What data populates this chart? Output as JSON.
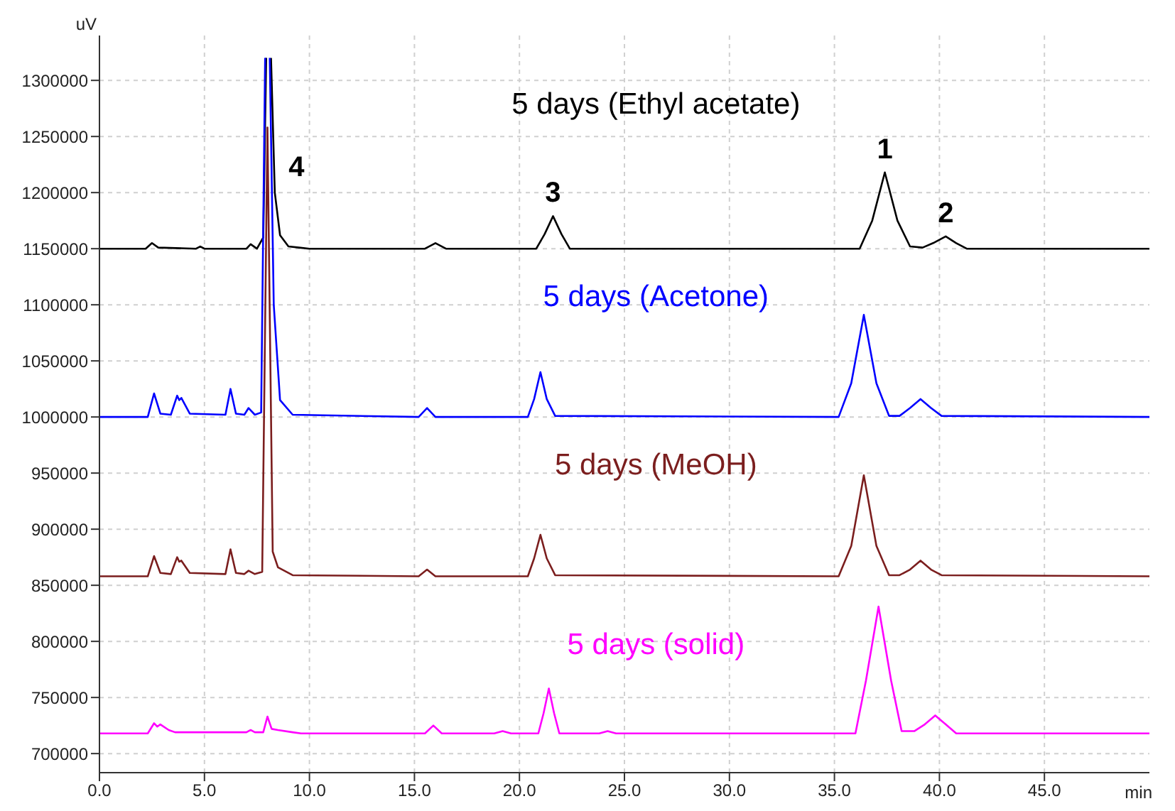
{
  "chart_data": {
    "type": "line",
    "xlabel": "min",
    "ylabel": "uV",
    "xlim": [
      0,
      50
    ],
    "ylim": [
      683000,
      1340000
    ],
    "xticks": [
      {
        "value": 0,
        "label": "0.0"
      },
      {
        "value": 5,
        "label": "5.0"
      },
      {
        "value": 10,
        "label": "10.0"
      },
      {
        "value": 15,
        "label": "15.0"
      },
      {
        "value": 20,
        "label": "20.0"
      },
      {
        "value": 25,
        "label": "25.0"
      },
      {
        "value": 30,
        "label": "30.0"
      },
      {
        "value": 35,
        "label": "35.0"
      },
      {
        "value": 40,
        "label": "40.0"
      },
      {
        "value": 45,
        "label": "45.0"
      }
    ],
    "yticks": [
      700000,
      750000,
      800000,
      850000,
      900000,
      950000,
      1000000,
      1050000,
      1100000,
      1150000,
      1200000,
      1250000,
      1300000
    ],
    "grid": true,
    "legend": false,
    "marker": "none",
    "line_style": "solid",
    "series": [
      {
        "name": "5 days (Ethyl acetate)",
        "color": "#000000",
        "x": [
          0,
          2.2,
          2.5,
          2.8,
          4.6,
          4.8,
          5.0,
          7.0,
          7.2,
          7.5,
          7.8,
          7.94,
          8.05,
          8.17,
          8.35,
          8.6,
          9.0,
          9.5,
          10,
          15.5,
          16.0,
          16.5,
          20.8,
          21.2,
          21.6,
          22.0,
          22.4,
          36.2,
          36.8,
          37.4,
          38.0,
          38.6,
          39.2,
          39.7,
          40.3,
          40.8,
          41.3,
          50
        ],
        "values": [
          1150000,
          1150000,
          1155000,
          1151000,
          1150000,
          1152000,
          1150000,
          1150000,
          1154000,
          1150000,
          1160000,
          1320000,
          null,
          1320000,
          1200000,
          1162000,
          1152000,
          1151000,
          1150000,
          1150000,
          1155000,
          1150000,
          1150000,
          1163000,
          1179000,
          1163000,
          1150000,
          1150000,
          1175000,
          1218000,
          1175000,
          1152000,
          1151000,
          1155000,
          1161000,
          1155000,
          1150000,
          1150000
        ]
      },
      {
        "name": "5 days (Acetone)",
        "color": "#0000ff",
        "x": [
          0,
          2.3,
          2.6,
          2.9,
          3.4,
          3.7,
          3.8,
          3.9,
          4.3,
          6.0,
          6.24,
          6.5,
          6.9,
          7.1,
          7.4,
          7.7,
          7.89,
          8.0,
          8.11,
          8.3,
          8.6,
          9.2,
          15.2,
          15.6,
          16.0,
          20.4,
          20.7,
          21.0,
          21.3,
          21.7,
          35.2,
          35.8,
          36.4,
          37.0,
          37.6,
          38.1,
          38.6,
          39.1,
          39.6,
          40.1,
          50
        ],
        "values": [
          1000000,
          1000000,
          1021000,
          1003000,
          1002000,
          1019000,
          1015000,
          1017000,
          1003000,
          1002000,
          1025000,
          1003000,
          1002000,
          1008000,
          1002000,
          1004000,
          1320000,
          null,
          1320000,
          1100000,
          1015000,
          1002000,
          1000000,
          1008000,
          1000000,
          1000000,
          1016000,
          1040000,
          1016000,
          1001000,
          1000000,
          1030000,
          1091000,
          1030000,
          1001000,
          1001000,
          1008000,
          1016000,
          1008000,
          1001000,
          1000000
        ]
      },
      {
        "name": "5 days (MeOH)",
        "color": "#7b1e1e",
        "x": [
          0,
          2.3,
          2.6,
          2.9,
          3.4,
          3.7,
          3.8,
          3.9,
          4.3,
          6.0,
          6.24,
          6.5,
          6.9,
          7.1,
          7.4,
          7.75,
          8.0,
          8.25,
          8.5,
          9.2,
          15.2,
          15.6,
          16.0,
          20.4,
          20.7,
          21.0,
          21.3,
          21.7,
          35.2,
          35.8,
          36.4,
          37.0,
          37.6,
          38.1,
          38.6,
          39.1,
          39.6,
          40.1,
          50
        ],
        "values": [
          858000,
          858000,
          876000,
          861000,
          860000,
          875000,
          871000,
          872000,
          861000,
          860000,
          882000,
          861000,
          860000,
          863000,
          860000,
          862000,
          1258000,
          880000,
          866000,
          859000,
          858000,
          864000,
          858000,
          858000,
          874000,
          895000,
          874000,
          859000,
          858000,
          885000,
          948000,
          885000,
          859000,
          859000,
          864000,
          872000,
          864000,
          859000,
          858000
        ]
      },
      {
        "name": "5 days (solid)",
        "color": "#ff00ff",
        "x": [
          0,
          2.3,
          2.6,
          2.75,
          2.9,
          3.3,
          3.6,
          7.0,
          7.2,
          7.4,
          7.8,
          8.0,
          8.2,
          8.5,
          9.2,
          9.6,
          15.5,
          15.9,
          16.3,
          18.8,
          19.2,
          19.6,
          20.9,
          21.15,
          21.4,
          21.65,
          21.9,
          23.8,
          24.2,
          24.6,
          36.0,
          36.5,
          37.1,
          37.7,
          38.2,
          38.8,
          39.3,
          39.8,
          40.3,
          40.8,
          50
        ],
        "values": [
          718000,
          718000,
          727000,
          724000,
          726000,
          721000,
          719000,
          719000,
          721000,
          719000,
          719000,
          733000,
          722000,
          721000,
          719000,
          718000,
          718000,
          725000,
          718000,
          718000,
          720000,
          718000,
          718000,
          736000,
          758000,
          736000,
          718000,
          718000,
          720000,
          718000,
          718000,
          765000,
          831000,
          765000,
          720000,
          720000,
          726000,
          734000,
          726000,
          718000,
          718000
        ]
      }
    ],
    "annotations": [
      {
        "text": "4",
        "x": 8.3,
        "y": 1220000
      },
      {
        "text": "3",
        "x": 21.6,
        "y": 1179000
      },
      {
        "text": "1",
        "x": 37.4,
        "y": 1218000
      },
      {
        "text": "2",
        "x": 40.3,
        "y": 1161000
      }
    ]
  }
}
